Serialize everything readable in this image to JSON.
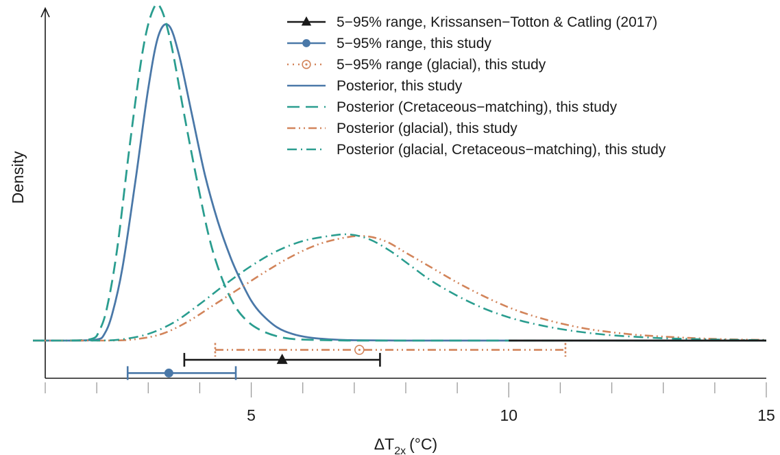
{
  "chart_data": {
    "type": "line",
    "ylabel": "Density",
    "xlabel_main": "ΔT",
    "xlabel_sub": "2x",
    "xlabel_unit": "(°C)",
    "xlim": [
      1,
      15
    ],
    "x_major_ticks": [
      5,
      10,
      15
    ],
    "x_tick_labels": [
      "5",
      "10",
      "15"
    ],
    "x_minor_ticks": [
      1,
      2,
      3,
      4,
      6,
      7,
      8,
      9,
      11,
      12,
      13,
      14
    ],
    "ylim": [
      -0.12,
      1.0
    ],
    "grid": false,
    "legend_position": "top-right",
    "colors": {
      "black": "#1a1a1a",
      "blue": "#4a78a8",
      "teal": "#2a9d8f",
      "orange": "#d2845a"
    },
    "legend": [
      {
        "label": "5−95% range, Krissansen−Totton & Catling (2017)",
        "color": "#1a1a1a",
        "line": "solid",
        "marker": "triangle"
      },
      {
        "label": "5−95% range, this study",
        "color": "#4a78a8",
        "line": "solid",
        "marker": "circle"
      },
      {
        "label": "5−95% range (glacial), this study",
        "color": "#d2845a",
        "line": "dotted",
        "marker": "circle-dot"
      },
      {
        "label": "Posterior, this study",
        "color": "#4a78a8",
        "line": "solid",
        "marker": "none"
      },
      {
        "label": "Posterior (Cretaceous−matching), this study",
        "color": "#2a9d8f",
        "line": "dashed",
        "marker": "none"
      },
      {
        "label": "Posterior (glacial), this study",
        "color": "#d2845a",
        "line": "dashdotdot",
        "marker": "none"
      },
      {
        "label": "Posterior (glacial, Cretaceous−matching), this study",
        "color": "#2a9d8f",
        "line": "dashdot",
        "marker": "none"
      }
    ],
    "series": [
      {
        "name": "Posterior, this study",
        "color": "#4a78a8",
        "style": "solid",
        "width": 2.8,
        "x": [
          0.2,
          1.5,
          2.0,
          2.15,
          2.3,
          2.5,
          2.75,
          3.0,
          3.2,
          3.4,
          3.6,
          3.85,
          4.1,
          4.35,
          4.6,
          4.8,
          5.0,
          5.2,
          5.5,
          5.8,
          6.1,
          6.5,
          7.0,
          8.0,
          10.0,
          15.0
        ],
        "y": [
          0.0,
          0.0,
          0.003,
          0.02,
          0.08,
          0.22,
          0.48,
          0.76,
          0.92,
          0.95,
          0.86,
          0.68,
          0.5,
          0.36,
          0.25,
          0.18,
          0.12,
          0.08,
          0.04,
          0.02,
          0.01,
          0.004,
          0.001,
          0.0,
          0.0,
          0.0
        ]
      },
      {
        "name": "Posterior (Cretaceous−matching), this study",
        "color": "#2a9d8f",
        "style": "dashed",
        "width": 2.8,
        "x": [
          0.2,
          1.4,
          1.9,
          2.05,
          2.2,
          2.4,
          2.65,
          2.9,
          3.1,
          3.25,
          3.45,
          3.7,
          3.95,
          4.2,
          4.45,
          4.7,
          4.95,
          5.2,
          5.5,
          5.8,
          6.2,
          7.0,
          8.0,
          15.0
        ],
        "y": [
          0.0,
          0.0,
          0.005,
          0.03,
          0.1,
          0.28,
          0.6,
          0.88,
          1.0,
          1.0,
          0.89,
          0.68,
          0.48,
          0.3,
          0.18,
          0.1,
          0.055,
          0.03,
          0.013,
          0.005,
          0.002,
          0.0,
          0.0,
          0.0
        ]
      },
      {
        "name": "Posterior (glacial), this study",
        "color": "#d2845a",
        "style": "dashdotdot",
        "width": 2.6,
        "x": [
          0.2,
          2.2,
          2.8,
          3.3,
          3.8,
          4.3,
          4.8,
          5.3,
          5.8,
          6.3,
          6.8,
          7.2,
          7.6,
          8.0,
          8.5,
          9.0,
          9.5,
          10.0,
          10.5,
          11.0,
          11.5,
          12.0,
          12.5,
          13.0,
          13.5,
          14.0,
          14.5,
          15.0
        ],
        "y": [
          0.0,
          0.0,
          0.005,
          0.022,
          0.06,
          0.11,
          0.16,
          0.21,
          0.255,
          0.29,
          0.31,
          0.315,
          0.3,
          0.265,
          0.22,
          0.175,
          0.135,
          0.1,
          0.073,
          0.052,
          0.036,
          0.025,
          0.017,
          0.012,
          0.008,
          0.005,
          0.003,
          0.002
        ]
      },
      {
        "name": "Posterior (glacial, Cretaceous−matching), this study",
        "color": "#2a9d8f",
        "style": "dashdot",
        "width": 2.6,
        "x": [
          0.2,
          2.0,
          2.5,
          3.0,
          3.5,
          4.0,
          4.5,
          5.0,
          5.5,
          6.0,
          6.5,
          6.9,
          7.3,
          7.7,
          8.1,
          8.5,
          9.0,
          9.5,
          10.0,
          10.5,
          11.0,
          11.5,
          12.0,
          12.5,
          13.0,
          13.5,
          14.0,
          15.0
        ],
        "y": [
          0.0,
          0.0,
          0.004,
          0.02,
          0.055,
          0.11,
          0.17,
          0.225,
          0.27,
          0.3,
          0.315,
          0.32,
          0.305,
          0.27,
          0.225,
          0.18,
          0.135,
          0.098,
          0.07,
          0.05,
          0.035,
          0.024,
          0.016,
          0.011,
          0.007,
          0.005,
          0.003,
          0.001
        ]
      },
      {
        "name": "Krissansen−Totton & Catling (2017) tail",
        "color": "#1a1a1a",
        "style": "solid",
        "width": 2.8,
        "x": [
          10.0,
          15.0
        ],
        "y": [
          0.0,
          0.0
        ]
      }
    ],
    "ranges": [
      {
        "name": "5−95% range (glacial), this study",
        "low": 4.3,
        "high": 11.1,
        "median": 7.1,
        "y": -0.028,
        "color": "#d2845a",
        "style": "dashdotdot",
        "marker": "circle-dot"
      },
      {
        "name": "5−95% range, Krissansen−Totton & Catling (2017)",
        "low": 3.7,
        "high": 7.5,
        "median": 5.6,
        "y": -0.058,
        "color": "#1a1a1a",
        "style": "solid",
        "marker": "triangle"
      },
      {
        "name": "5−95% range, this study",
        "low": 2.6,
        "high": 4.7,
        "median": 3.4,
        "y": -0.098,
        "color": "#4a78a8",
        "style": "solid",
        "marker": "circle"
      }
    ]
  }
}
